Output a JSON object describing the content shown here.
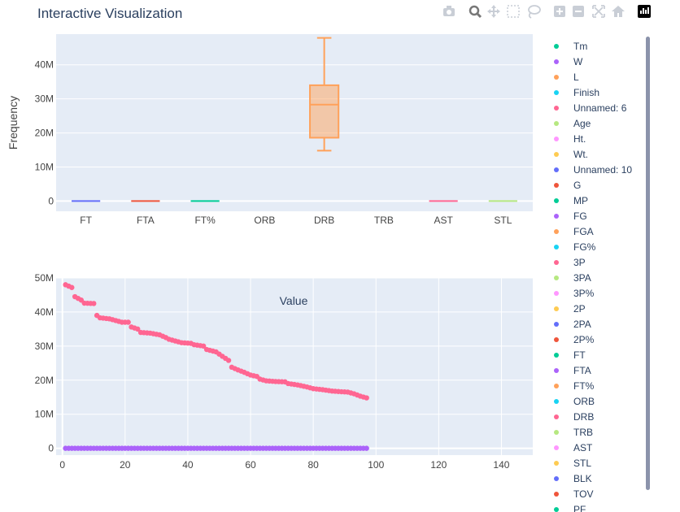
{
  "title": "Interactive Visualization",
  "modebar": {
    "buttons": [
      "camera-icon",
      "zoom-icon",
      "pan-icon",
      "box-select-icon",
      "lasso-icon",
      "zoom-in-icon",
      "zoom-out-icon",
      "autoscale-icon",
      "home-icon",
      "plotly-logo-icon"
    ]
  },
  "colors": {
    "plot_bg": "#e5ecf6",
    "grid": "#ffffff",
    "scrollbar": "#8b93ab"
  },
  "chart_data": [
    {
      "type": "box",
      "ylabel": "Frequency",
      "yticks": [
        0,
        10000000,
        20000000,
        30000000,
        40000000
      ],
      "ytick_labels": [
        "0",
        "10M",
        "20M",
        "30M",
        "40M"
      ],
      "ylim": [
        -3000000,
        49000000
      ],
      "categories": [
        "FT",
        "FTA",
        "FT%",
        "ORB",
        "DRB",
        "TRB",
        "AST",
        "STL"
      ],
      "boxes": [
        {
          "category": "FT",
          "color": "#636efa",
          "min": 0,
          "q1": 0,
          "median": 0,
          "q3": 0,
          "max": 0
        },
        {
          "category": "FTA",
          "color": "#ef553b",
          "min": 0,
          "q1": 0,
          "median": 0,
          "q3": 0,
          "max": 0
        },
        {
          "category": "FT%",
          "color": "#00cc96",
          "min": 0,
          "q1": 0,
          "median": 0,
          "q3": 0,
          "max": 0
        },
        {
          "category": "DRB",
          "color": "#ffa15a",
          "min": 14800000,
          "q1": 18600000,
          "median": 28300000,
          "q3": 34000000,
          "max": 47900000
        },
        {
          "category": "AST",
          "color": "#ff6692",
          "min": 0,
          "q1": 0,
          "median": 0,
          "q3": 0,
          "max": 0
        },
        {
          "category": "STL",
          "color": "#b6e880",
          "min": 0,
          "q1": 0,
          "median": 0,
          "q3": 0,
          "max": 0
        }
      ]
    },
    {
      "type": "scatter",
      "annotation": "Value",
      "xlim": [
        -2,
        150
      ],
      "ylim": [
        -2000000,
        50000000
      ],
      "xticks": [
        0,
        20,
        40,
        60,
        80,
        100,
        120,
        140
      ],
      "yticks": [
        0,
        10000000,
        20000000,
        30000000,
        40000000,
        50000000
      ],
      "ytick_labels": [
        "0",
        "10M",
        "20M",
        "30M",
        "40M",
        "50M"
      ],
      "series": [
        {
          "color": "#ff6692",
          "anchors": [
            [
              1,
              48000000
            ],
            [
              3,
              47200000
            ],
            [
              4,
              44500000
            ],
            [
              6,
              43500000
            ],
            [
              7,
              42600000
            ],
            [
              10,
              42500000
            ],
            [
              11,
              39000000
            ],
            [
              12,
              38300000
            ],
            [
              15,
              38000000
            ],
            [
              17,
              37500000
            ],
            [
              19,
              37000000
            ],
            [
              21,
              37000000
            ],
            [
              22,
              35600000
            ],
            [
              24,
              35000000
            ],
            [
              25,
              34000000
            ],
            [
              28,
              33800000
            ],
            [
              31,
              33300000
            ],
            [
              33,
              32500000
            ],
            [
              34,
              32000000
            ],
            [
              36,
              31500000
            ],
            [
              38,
              31000000
            ],
            [
              41,
              30800000
            ],
            [
              42,
              30400000
            ],
            [
              45,
              30000000
            ],
            [
              46,
              29000000
            ],
            [
              49,
              28300000
            ],
            [
              51,
              27000000
            ],
            [
              53,
              25800000
            ],
            [
              54,
              23800000
            ],
            [
              56,
              23000000
            ],
            [
              58,
              22300000
            ],
            [
              60,
              21500000
            ],
            [
              62,
              21100000
            ],
            [
              63,
              20300000
            ],
            [
              65,
              19800000
            ],
            [
              68,
              19600000
            ],
            [
              71,
              19500000
            ],
            [
              72,
              19000000
            ],
            [
              75,
              18600000
            ],
            [
              78,
              18000000
            ],
            [
              80,
              17500000
            ],
            [
              83,
              17200000
            ],
            [
              86,
              16800000
            ],
            [
              89,
              16600000
            ],
            [
              91,
              16500000
            ],
            [
              93,
              16000000
            ],
            [
              95,
              15300000
            ],
            [
              97,
              14800000
            ]
          ],
          "count": 97
        },
        {
          "color": "#ab63fa",
          "constant": 0,
          "count": 97
        }
      ]
    }
  ],
  "legend": [
    "Tm",
    "W",
    "L",
    "Finish",
    "Unnamed: 6",
    "Age",
    "Ht.",
    "Wt.",
    "Unnamed: 10",
    "G",
    "MP",
    "FG",
    "FGA",
    "FG%",
    "3P",
    "3PA",
    "3P%",
    "2P",
    "2PA",
    "2P%",
    "FT",
    "FTA",
    "FT%",
    "ORB",
    "DRB",
    "TRB",
    "AST",
    "STL",
    "BLK",
    "TOV",
    "PF"
  ],
  "legend_colors": [
    "#00cc96",
    "#ab63fa",
    "#ffa15a",
    "#19d3f3",
    "#ff6692",
    "#b6e880",
    "#ff97ff",
    "#fecb52",
    "#636efa",
    "#ef553b"
  ]
}
